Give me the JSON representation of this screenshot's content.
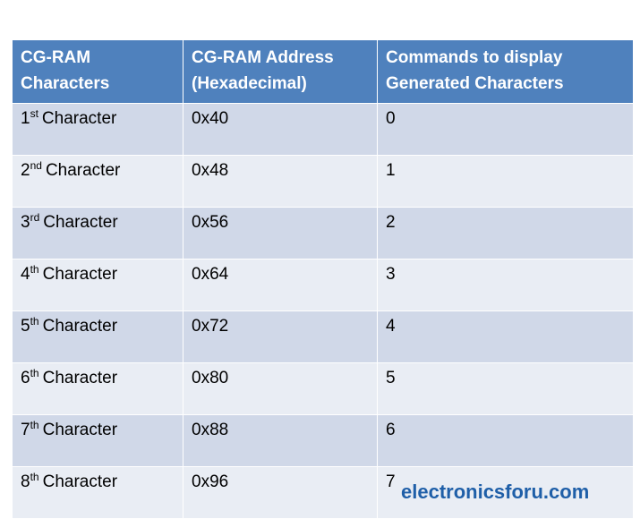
{
  "table": {
    "header": [
      "CG-RAM Characters",
      "CG-RAM Address (Hexadecimal)",
      "Commands to display Generated Characters"
    ],
    "rows": [
      [
        {
          "num": "1",
          "sup": "st",
          "word": "Character"
        },
        "0x40",
        "0"
      ],
      [
        {
          "num": "2",
          "sup": "nd",
          "word": "Character"
        },
        "0x48",
        "1"
      ],
      [
        {
          "num": "3",
          "sup": "rd",
          "word": "Character"
        },
        "0x56",
        "2"
      ],
      [
        {
          "num": "4",
          "sup": "th",
          "word": "Character"
        },
        "0x64",
        "3"
      ],
      [
        {
          "num": "5",
          "sup": "th",
          "word": "Character"
        },
        "0x72",
        "4"
      ],
      [
        {
          "num": "6",
          "sup": "th",
          "word": "Character"
        },
        "0x80",
        "5"
      ],
      [
        {
          "num": "7",
          "sup": "th",
          "word": "Character"
        },
        "0x88",
        "6"
      ],
      [
        {
          "num": "8",
          "sup": "th",
          "word": "Character"
        },
        "0x96",
        "7"
      ]
    ]
  },
  "footer": {
    "site": "electronicsforu.com"
  }
}
